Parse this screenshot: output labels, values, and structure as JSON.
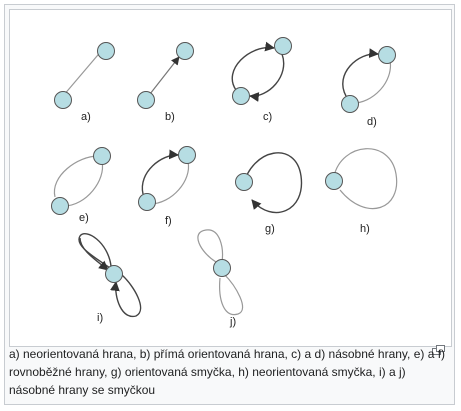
{
  "panels": [
    {
      "key": "a",
      "label": "a)"
    },
    {
      "key": "b",
      "label": "b)"
    },
    {
      "key": "c",
      "label": "c)"
    },
    {
      "key": "d",
      "label": "d)"
    },
    {
      "key": "e",
      "label": "e)"
    },
    {
      "key": "f",
      "label": "f)"
    },
    {
      "key": "g",
      "label": "g)"
    },
    {
      "key": "h",
      "label": "h)"
    },
    {
      "key": "i",
      "label": "i)"
    },
    {
      "key": "j",
      "label": "j)"
    }
  ],
  "caption": {
    "text": "a) neorientovaná hrana, b) přímá orientovaná hrana, c) a d) násobné hrany, e) a f) rovnoběžné hrany, g) orientovaná smyčka, h) neorientovaná smyčka, i) a j) násobné hrany se smyčkou"
  },
  "colors": {
    "node_fill": "#b6dde3",
    "node_stroke": "#555555",
    "edge_light": "#999999",
    "edge_dark": "#444444"
  },
  "icons": {
    "enlarge": "magnify-clip-icon"
  }
}
